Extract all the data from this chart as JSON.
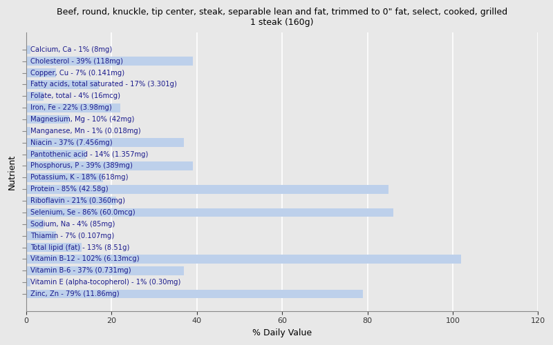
{
  "title": "Beef, round, knuckle, tip center, steak, separable lean and fat, trimmed to 0\" fat, select, cooked, grilled\n1 steak (160g)",
  "xlabel": "% Daily Value",
  "ylabel": "Nutrient",
  "xlim": [
    0,
    120
  ],
  "xticks": [
    0,
    20,
    40,
    60,
    80,
    100,
    120
  ],
  "bar_color": "#bdd0eb",
  "background_color": "#e8e8e8",
  "label_color": "#1a1a8c",
  "nutrients": [
    {
      "label": "Calcium, Ca - 1% (8mg)",
      "value": 1
    },
    {
      "label": "Cholesterol - 39% (118mg)",
      "value": 39
    },
    {
      "label": "Copper, Cu - 7% (0.141mg)",
      "value": 7
    },
    {
      "label": "Fatty acids, total saturated - 17% (3.301g)",
      "value": 17
    },
    {
      "label": "Folate, total - 4% (16mcg)",
      "value": 4
    },
    {
      "label": "Iron, Fe - 22% (3.98mg)",
      "value": 22
    },
    {
      "label": "Magnesium, Mg - 10% (42mg)",
      "value": 10
    },
    {
      "label": "Manganese, Mn - 1% (0.018mg)",
      "value": 1
    },
    {
      "label": "Niacin - 37% (7.456mg)",
      "value": 37
    },
    {
      "label": "Pantothenic acid - 14% (1.357mg)",
      "value": 14
    },
    {
      "label": "Phosphorus, P - 39% (389mg)",
      "value": 39
    },
    {
      "label": "Potassium, K - 18% (618mg)",
      "value": 18
    },
    {
      "label": "Protein - 85% (42.58g)",
      "value": 85
    },
    {
      "label": "Riboflavin - 21% (0.360mg)",
      "value": 21
    },
    {
      "label": "Selenium, Se - 86% (60.0mcg)",
      "value": 86
    },
    {
      "label": "Sodium, Na - 4% (85mg)",
      "value": 4
    },
    {
      "label": "Thiamin - 7% (0.107mg)",
      "value": 7
    },
    {
      "label": "Total lipid (fat) - 13% (8.51g)",
      "value": 13
    },
    {
      "label": "Vitamin B-12 - 102% (6.13mcg)",
      "value": 102
    },
    {
      "label": "Vitamin B-6 - 37% (0.731mg)",
      "value": 37
    },
    {
      "label": "Vitamin E (alpha-tocopherol) - 1% (0.30mg)",
      "value": 1
    },
    {
      "label": "Zinc, Zn - 79% (11.86mg)",
      "value": 79
    }
  ]
}
